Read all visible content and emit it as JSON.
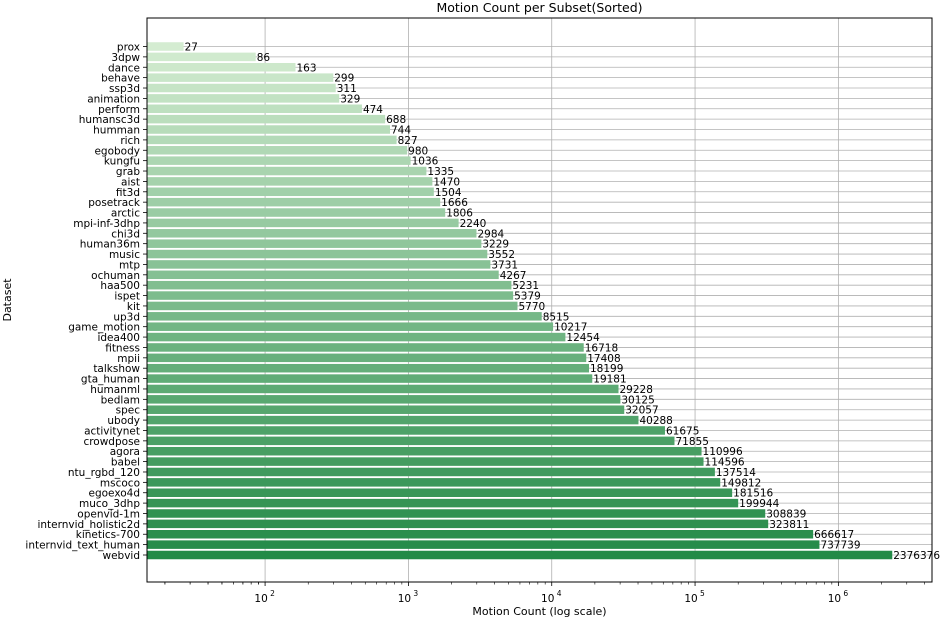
{
  "chart_data": {
    "type": "bar",
    "orientation": "horizontal",
    "title": "Motion Count per Subset(Sorted)",
    "xlabel": "Motion Count (log scale)",
    "ylabel": "Dataset",
    "xscale": "log",
    "xlim": [
      15,
      4500000
    ],
    "xticks": [
      {
        "value": 100,
        "base": "10",
        "exp": "2"
      },
      {
        "value": 1000,
        "base": "10",
        "exp": "3"
      },
      {
        "value": 10000,
        "base": "10",
        "exp": "4"
      },
      {
        "value": 100000,
        "base": "10",
        "exp": "5"
      },
      {
        "value": 1000000,
        "base": "10",
        "exp": "6"
      }
    ],
    "grid": true,
    "colormap": [
      "#d4ecd1",
      "#238a47"
    ],
    "categories": [
      "prox",
      "3dpw",
      "dance",
      "behave",
      "ssp3d",
      "animation",
      "perform",
      "humansc3d",
      "humman",
      "rich",
      "egobody",
      "kungfu",
      "grab",
      "aist",
      "fit3d",
      "posetrack",
      "arctic",
      "mpi-inf-3dhp",
      "chi3d",
      "human36m",
      "music",
      "mtp",
      "ochuman",
      "haa500",
      "ispet",
      "kit",
      "up3d",
      "game_motion",
      "idea400",
      "fitness",
      "mpii",
      "talkshow",
      "gta_human",
      "humanml",
      "bedlam",
      "spec",
      "ubody",
      "activitynet",
      "crowdpose",
      "agora",
      "babel",
      "ntu_rgbd_120",
      "mscoco",
      "egoexo4d",
      "muco_3dhp",
      "openvid-1m",
      "internvid_holistic2d",
      "kinetics-700",
      "internvid_text_human",
      "webvid"
    ],
    "values": [
      27,
      86,
      163,
      299,
      311,
      329,
      474,
      688,
      744,
      827,
      980,
      1036,
      1335,
      1470,
      1504,
      1666,
      1806,
      2240,
      2984,
      3229,
      3552,
      3731,
      4267,
      5231,
      5379,
      5770,
      8515,
      10217,
      12454,
      16718,
      17408,
      18199,
      19181,
      29228,
      30125,
      32057,
      40288,
      61675,
      71855,
      110996,
      114596,
      137514,
      149812,
      181516,
      199944,
      308839,
      323811,
      666617,
      737739,
      2376376
    ],
    "value_labels": [
      "27",
      "86",
      "163",
      "299",
      "311",
      "329",
      "474",
      "688",
      "744",
      "827",
      "980",
      "1036",
      "1335",
      "1470",
      "1504",
      "1666",
      "1806",
      "2240",
      "2984",
      "3229",
      "3552",
      "3731",
      "4267",
      "5231",
      "5379",
      "5770",
      "8515",
      "10217",
      "12454",
      "16718",
      "17408",
      "18199",
      "19181",
      "29228",
      "30125",
      "32057",
      "40288",
      "61675",
      "71855",
      "110996",
      "114596",
      "137514",
      "149812",
      "181516",
      "199944",
      "308839",
      "323811",
      "666617",
      "737739",
      "2376376"
    ]
  }
}
